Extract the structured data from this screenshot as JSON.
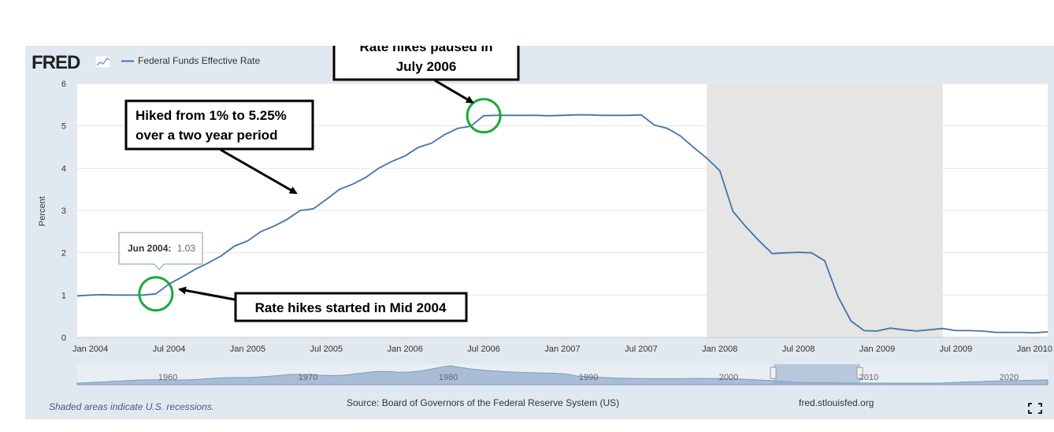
{
  "header": {
    "logo_text": "FRED",
    "legend_label": "Federal Funds Effective Rate"
  },
  "footer": {
    "recession_note": "Shaded areas indicate U.S. recessions.",
    "source": "Source: Board of Governors of the Federal Reserve System (US)",
    "site": "fred.stlouisfed.org"
  },
  "tooltip": {
    "date": "Jun 2004:",
    "value": "1.03"
  },
  "annotations": [
    {
      "id": "hike-start",
      "lines": [
        "Rate hikes started in Mid 2004"
      ]
    },
    {
      "id": "hike-range",
      "lines": [
        "Hiked from 1% to 5.25%",
        "over a two year period"
      ]
    },
    {
      "id": "hike-pause",
      "lines": [
        "Rate hikes paused in",
        "July 2006"
      ]
    }
  ],
  "navigator": {
    "tick_labels": [
      "1960",
      "1970",
      "1980",
      "1990",
      "2000",
      "2010",
      "2020"
    ]
  },
  "colors": {
    "line": "#4572a7",
    "background": "#e1e9f0",
    "recession": "#e5e5e5",
    "highlight_circle": "#1aaa3c"
  },
  "chart_data": {
    "type": "line",
    "title": "Federal Funds Effective Rate",
    "xlabel": "",
    "ylabel": "Percent",
    "ylim": [
      0,
      6
    ],
    "yticks": [
      0,
      1,
      2,
      3,
      4,
      5,
      6
    ],
    "x_tick_labels": [
      "Jan 2004",
      "Jul 2004",
      "Jan 2005",
      "Jul 2005",
      "Jan 2006",
      "Jul 2006",
      "Jan 2007",
      "Jul 2007",
      "Jan 2008",
      "Jul 2008",
      "Jan 2009",
      "Jul 2009",
      "Jan 2010"
    ],
    "start": "Dec 2003",
    "end": "Feb 2010",
    "recession": {
      "start_index": 48,
      "end_index": 66,
      "label": "Dec 2007 - Jun 2009"
    },
    "series": [
      {
        "name": "Federal Funds Effective Rate",
        "x": [
          "Dec 2003",
          "Jan 2004",
          "Feb 2004",
          "Mar 2004",
          "Apr 2004",
          "May 2004",
          "Jun 2004",
          "Jul 2004",
          "Aug 2004",
          "Sep 2004",
          "Oct 2004",
          "Nov 2004",
          "Dec 2004",
          "Jan 2005",
          "Feb 2005",
          "Mar 2005",
          "Apr 2005",
          "May 2005",
          "Jun 2005",
          "Jul 2005",
          "Aug 2005",
          "Sep 2005",
          "Oct 2005",
          "Nov 2005",
          "Dec 2005",
          "Jan 2006",
          "Feb 2006",
          "Mar 2006",
          "Apr 2006",
          "May 2006",
          "Jun 2006",
          "Jul 2006",
          "Aug 2006",
          "Sep 2006",
          "Oct 2006",
          "Nov 2006",
          "Dec 2006",
          "Jan 2007",
          "Feb 2007",
          "Mar 2007",
          "Apr 2007",
          "May 2007",
          "Jun 2007",
          "Jul 2007",
          "Aug 2007",
          "Sep 2007",
          "Oct 2007",
          "Nov 2007",
          "Dec 2007",
          "Jan 2008",
          "Feb 2008",
          "Mar 2008",
          "Apr 2008",
          "May 2008",
          "Jun 2008",
          "Jul 2008",
          "Aug 2008",
          "Sep 2008",
          "Oct 2008",
          "Nov 2008",
          "Dec 2008",
          "Jan 2009",
          "Feb 2009",
          "Mar 2009",
          "Apr 2009",
          "May 2009",
          "Jun 2009",
          "Jul 2009",
          "Aug 2009",
          "Sep 2009",
          "Oct 2009",
          "Nov 2009",
          "Dec 2009",
          "Jan 2010",
          "Feb 2010"
        ],
        "values": [
          0.98,
          1.0,
          1.01,
          1.0,
          1.0,
          1.0,
          1.03,
          1.26,
          1.43,
          1.61,
          1.76,
          1.93,
          2.16,
          2.28,
          2.5,
          2.63,
          2.79,
          3.0,
          3.04,
          3.26,
          3.5,
          3.62,
          3.78,
          4.0,
          4.16,
          4.29,
          4.49,
          4.59,
          4.79,
          4.94,
          4.99,
          5.24,
          5.25,
          5.25,
          5.25,
          5.25,
          5.24,
          5.25,
          5.26,
          5.26,
          5.25,
          5.25,
          5.25,
          5.26,
          5.02,
          4.94,
          4.76,
          4.49,
          4.24,
          3.94,
          2.98,
          2.61,
          2.28,
          1.98,
          2.0,
          2.01,
          2.0,
          1.81,
          0.97,
          0.39,
          0.16,
          0.15,
          0.22,
          0.18,
          0.15,
          0.18,
          0.21,
          0.16,
          0.16,
          0.15,
          0.12,
          0.12,
          0.12,
          0.11,
          0.13
        ]
      }
    ]
  }
}
